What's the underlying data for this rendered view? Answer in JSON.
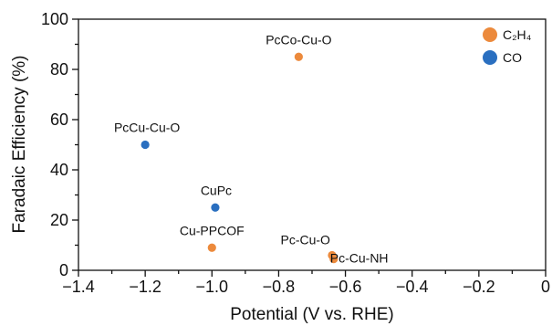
{
  "chart_data": {
    "type": "scatter",
    "xlabel": "Potential (V vs. RHE)",
    "ylabel": "Faradaic Efficiency (%)",
    "xlim": [
      -1.4,
      0
    ],
    "ylim": [
      0,
      100
    ],
    "x_ticks": [
      -1.4,
      -1.2,
      -1.0,
      -0.8,
      -0.6,
      -0.4,
      -0.2,
      0
    ],
    "x_tick_labels": [
      "−1.4",
      "−1.2",
      "−1.0",
      "−0.8",
      "−0.6",
      "−0.4",
      "−0.2",
      "0"
    ],
    "y_ticks": [
      0,
      20,
      40,
      60,
      80,
      100
    ],
    "y_tick_labels": [
      "0",
      "20",
      "40",
      "60",
      "80",
      "100"
    ],
    "grid": false,
    "legend_position": "top-right",
    "series": [
      {
        "name": "C₂H₄",
        "color": "#ec8a3c",
        "points": [
          {
            "label": "PcCo-Cu-O",
            "x": -0.74,
            "y": 85
          },
          {
            "label": "Cu-PPCOF",
            "x": -1.0,
            "y": 9
          },
          {
            "label": "Pc-Cu-O",
            "x": -0.64,
            "y": 6
          },
          {
            "label": "Pc-Cu-NH",
            "x": -0.635,
            "y": 4.5
          }
        ]
      },
      {
        "name": "CO",
        "color": "#2a6fc0",
        "points": [
          {
            "label": "PcCu-Cu-O",
            "x": -1.2,
            "y": 50
          },
          {
            "label": "CuPc",
            "x": -0.99,
            "y": 25
          }
        ]
      }
    ]
  }
}
